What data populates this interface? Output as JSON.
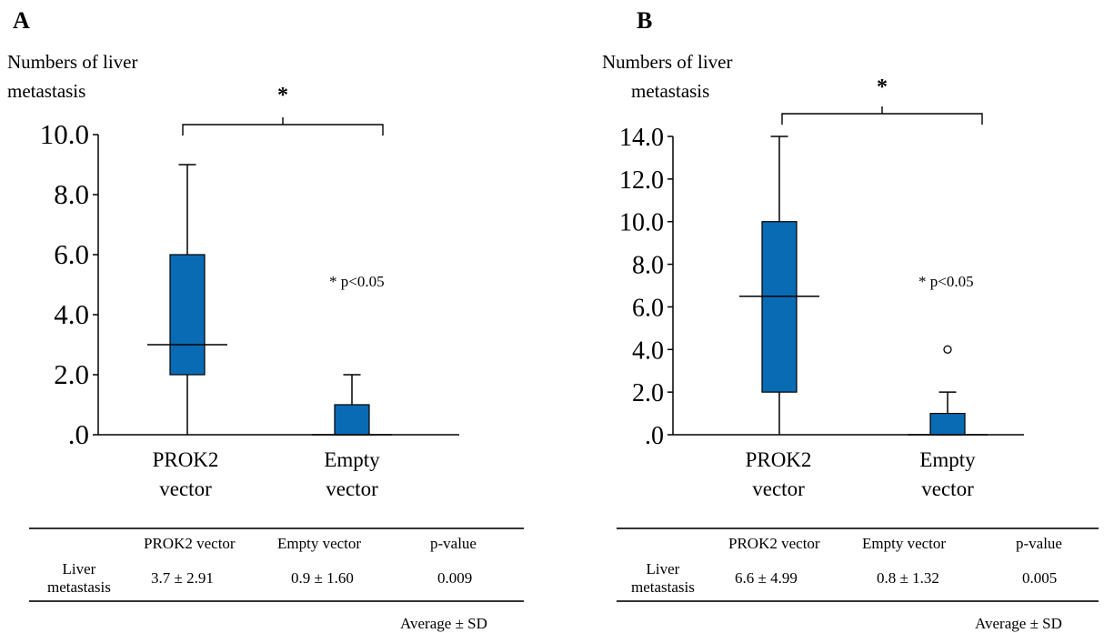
{
  "colors": {
    "box_fill": "#0a6bb5",
    "line": "#000000"
  },
  "panels": [
    {
      "label": "A",
      "ylabel_lines": [
        "Numbers of liver",
        "metastasis"
      ],
      "sig_marker": "*",
      "p_note": "* p<0.05",
      "categories": [
        [
          "PROK2",
          "vector"
        ],
        [
          "Empty",
          "vector"
        ]
      ],
      "table": {
        "headers": [
          "PROK2 vector",
          "Empty vector",
          "p-value"
        ],
        "row_label_lines": [
          "Liver",
          "metastasis"
        ],
        "values": [
          "3.7 ± 2.91",
          "0.9 ± 1.60",
          "0.009"
        ]
      },
      "footnote": "Average  ±  SD"
    },
    {
      "label": "B",
      "ylabel_lines": [
        "Numbers of liver",
        "metastasis"
      ],
      "sig_marker": "*",
      "p_note": "* p<0.05",
      "categories": [
        [
          "PROK2",
          "vector"
        ],
        [
          "Empty",
          "vector"
        ]
      ],
      "table": {
        "headers": [
          "PROK2 vector",
          "Empty vector",
          "p-value"
        ],
        "row_label_lines": [
          "Liver",
          "metastasis"
        ],
        "values": [
          "6.6 ± 4.99",
          "0.8 ± 1.32",
          "0.005"
        ]
      },
      "footnote": "Average  ±  SD"
    }
  ],
  "chart_data": [
    {
      "type": "box",
      "title": "A",
      "ylabel": "Numbers of liver metastasis",
      "ylim": [
        0,
        10
      ],
      "yticks": [
        0,
        2,
        4,
        6,
        8,
        10
      ],
      "ytick_labels": [
        ".0",
        "2.0",
        "4.0",
        "6.0",
        "8.0",
        "10.0"
      ],
      "categories": [
        "PROK2 vector",
        "Empty vector"
      ],
      "boxes": [
        {
          "category": "PROK2 vector",
          "min": 0,
          "q1": 2,
          "median": 3,
          "q3": 6,
          "max": 9,
          "outliers": []
        },
        {
          "category": "Empty vector",
          "min": 0,
          "q1": 0,
          "median": 0,
          "q3": 1,
          "max": 2,
          "outliers": []
        }
      ],
      "annotations": [
        "*",
        "* p<0.05"
      ]
    },
    {
      "type": "box",
      "title": "B",
      "ylabel": "Numbers of liver metastasis",
      "ylim": [
        0,
        14
      ],
      "yticks": [
        0,
        2,
        4,
        6,
        8,
        10,
        12,
        14
      ],
      "ytick_labels": [
        ".0",
        "2.0",
        "4.0",
        "6.0",
        "8.0",
        "10.0",
        "12.0",
        "14.0"
      ],
      "categories": [
        "PROK2 vector",
        "Empty vector"
      ],
      "boxes": [
        {
          "category": "PROK2 vector",
          "min": 0,
          "q1": 2,
          "median": 6.5,
          "q3": 10,
          "max": 14,
          "outliers": []
        },
        {
          "category": "Empty vector",
          "min": 0,
          "q1": 0,
          "median": 0,
          "q3": 1,
          "max": 2,
          "outliers": [
            4
          ]
        }
      ],
      "annotations": [
        "*",
        "* p<0.05"
      ]
    }
  ]
}
